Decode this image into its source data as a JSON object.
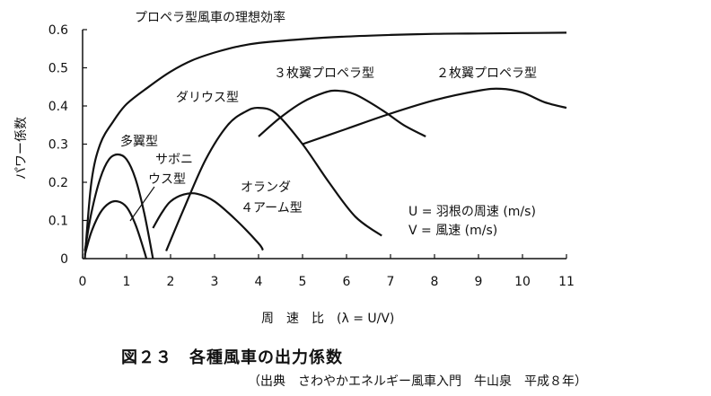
{
  "chart_data": {
    "type": "line",
    "title": "",
    "xlabel": "周　速　比　(λ = U/V)",
    "ylabel": "パワー係数",
    "xlim": [
      0,
      11
    ],
    "ylim": [
      0,
      0.6
    ],
    "x_ticks": [
      "0",
      "1",
      "2",
      "3",
      "4",
      "5",
      "6",
      "7",
      "8",
      "9",
      "10",
      "11"
    ],
    "y_ticks": [
      "0",
      "0.1",
      "0.2",
      "0.3",
      "0.4",
      "0.5",
      "0.6"
    ],
    "grid": false,
    "legend": "none",
    "legend_note": [
      "U = 羽根の周速 (m/s)",
      "V = 風速 (m/s)"
    ],
    "series": [
      {
        "name": "プロペラ型風車の理想効率",
        "points": [
          [
            0.05,
            0
          ],
          [
            0.2,
            0.2
          ],
          [
            0.4,
            0.3
          ],
          [
            0.7,
            0.36
          ],
          [
            1,
            0.405
          ],
          [
            1.5,
            0.45
          ],
          [
            2,
            0.49
          ],
          [
            2.5,
            0.52
          ],
          [
            3,
            0.54
          ],
          [
            3.5,
            0.555
          ],
          [
            4,
            0.565
          ],
          [
            5,
            0.575
          ],
          [
            6,
            0.582
          ],
          [
            7,
            0.586
          ],
          [
            8,
            0.589
          ],
          [
            9,
            0.59
          ],
          [
            10,
            0.591
          ],
          [
            11,
            0.592
          ]
        ]
      },
      {
        "name": "多翼型",
        "points": [
          [
            0.05,
            0.02
          ],
          [
            0.2,
            0.12
          ],
          [
            0.4,
            0.21
          ],
          [
            0.6,
            0.26
          ],
          [
            0.8,
            0.273
          ],
          [
            1.0,
            0.26
          ],
          [
            1.2,
            0.21
          ],
          [
            1.4,
            0.12
          ],
          [
            1.6,
            0
          ]
        ]
      },
      {
        "name": "サボニウス型",
        "points": [
          [
            0.05,
            0.01
          ],
          [
            0.2,
            0.07
          ],
          [
            0.4,
            0.12
          ],
          [
            0.6,
            0.145
          ],
          [
            0.8,
            0.15
          ],
          [
            1.0,
            0.135
          ],
          [
            1.2,
            0.09
          ],
          [
            1.4,
            0.02
          ],
          [
            1.45,
            0
          ]
        ]
      },
      {
        "name": "オランダ４アーム型",
        "points": [
          [
            1.6,
            0.08
          ],
          [
            1.8,
            0.12
          ],
          [
            2.0,
            0.15
          ],
          [
            2.3,
            0.168
          ],
          [
            2.6,
            0.17
          ],
          [
            3.0,
            0.15
          ],
          [
            3.5,
            0.1
          ],
          [
            4.0,
            0.04
          ],
          [
            4.1,
            0.022
          ]
        ]
      },
      {
        "name": "ダリウス型",
        "points": [
          [
            1.9,
            0.02
          ],
          [
            2.3,
            0.13
          ],
          [
            2.8,
            0.26
          ],
          [
            3.3,
            0.35
          ],
          [
            3.7,
            0.385
          ],
          [
            4.0,
            0.395
          ],
          [
            4.4,
            0.38
          ],
          [
            5.0,
            0.3
          ],
          [
            5.6,
            0.2
          ],
          [
            6.2,
            0.11
          ],
          [
            6.8,
            0.06
          ]
        ]
      },
      {
        "name": "3枚翼プロペラ型",
        "points": [
          [
            4.0,
            0.32
          ],
          [
            4.5,
            0.37
          ],
          [
            5.0,
            0.41
          ],
          [
            5.5,
            0.435
          ],
          [
            5.8,
            0.44
          ],
          [
            6.2,
            0.43
          ],
          [
            6.8,
            0.39
          ],
          [
            7.3,
            0.35
          ],
          [
            7.8,
            0.32
          ]
        ]
      },
      {
        "name": "2枚翼プロペラ型",
        "points": [
          [
            5.0,
            0.3
          ],
          [
            6.0,
            0.34
          ],
          [
            7.0,
            0.38
          ],
          [
            8.0,
            0.415
          ],
          [
            9.0,
            0.44
          ],
          [
            9.5,
            0.445
          ],
          [
            10.0,
            0.435
          ],
          [
            10.5,
            0.41
          ],
          [
            11.0,
            0.395
          ]
        ]
      }
    ],
    "annotations": {
      "ideal": "プロペラ型風車の理想効率",
      "multiblade": "多翼型",
      "savonius_1": "サボニ",
      "savonius_2": "ウス型",
      "dutch_1": "オランダ",
      "dutch_2": "４アーム型",
      "darrieus": "ダリウス型",
      "three_blade": "３枚翼プロペラ型",
      "two_blade": "２枚翼プロペラ型"
    }
  },
  "caption": "図２３　各種風車の出力係数",
  "source": "（出典　さわやかエネルギー風車入門　牛山泉　平成８年）"
}
